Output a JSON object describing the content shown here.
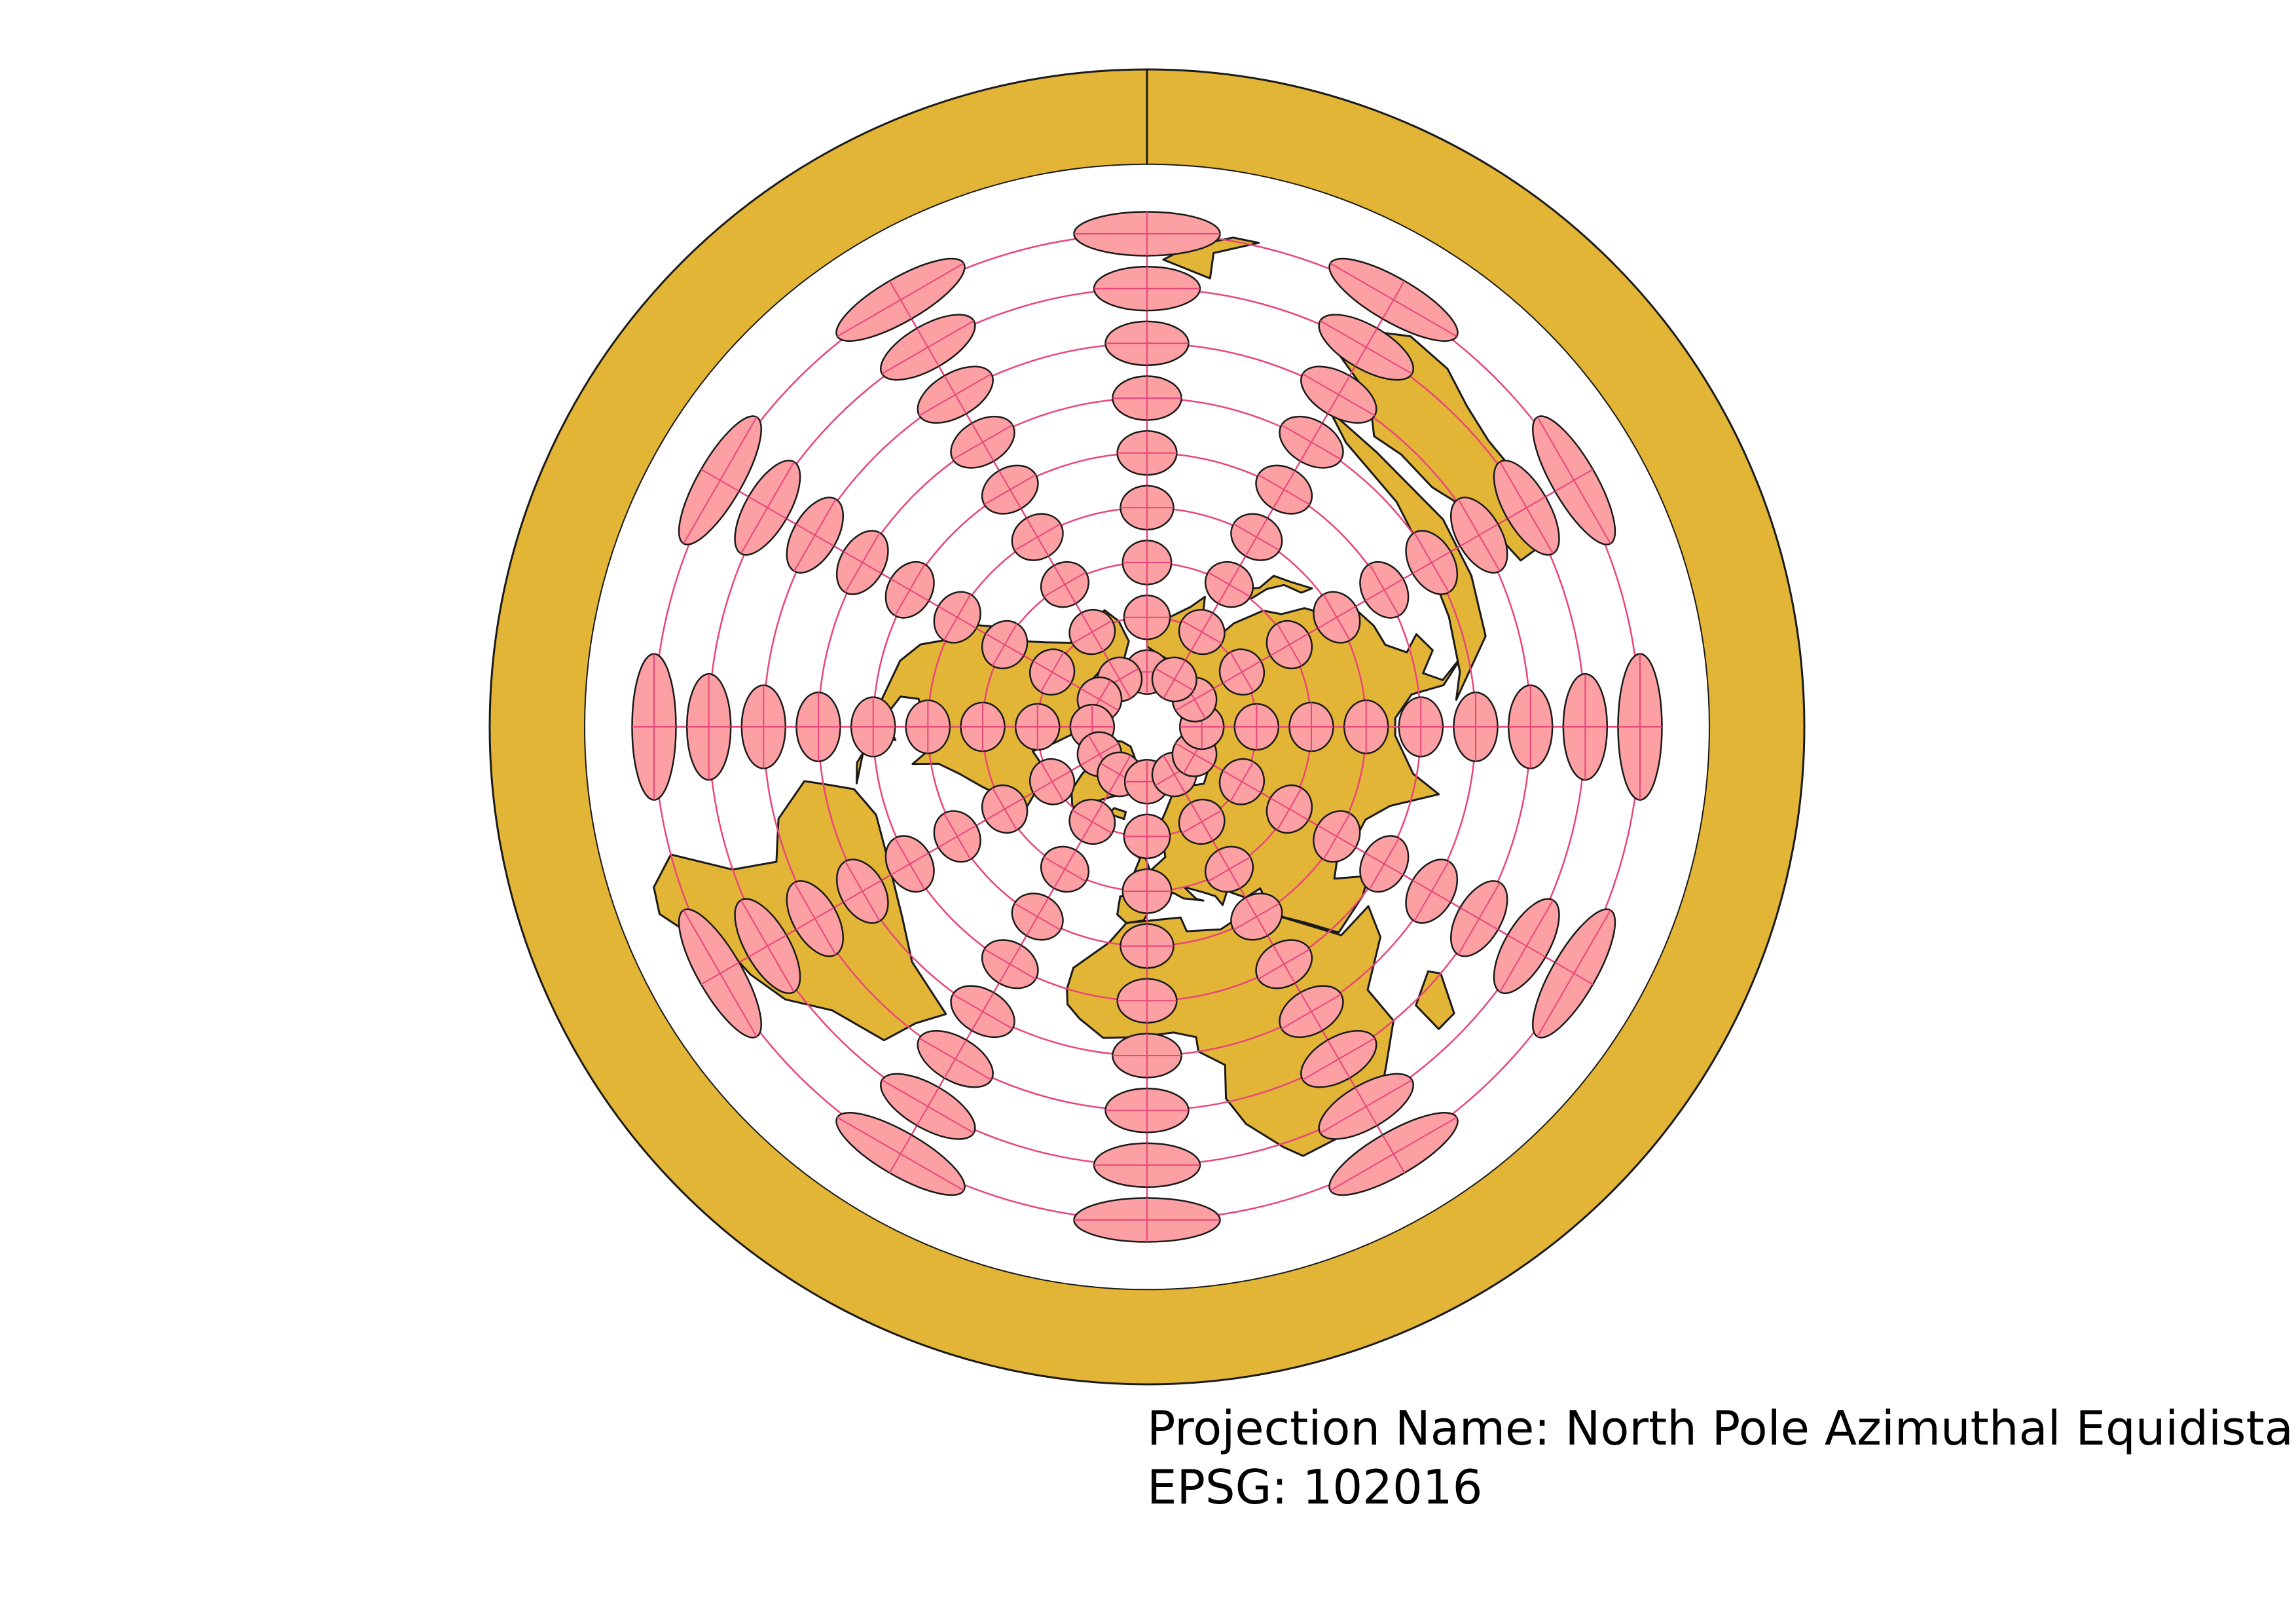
{
  "map": {
    "projection_label": "Projection Name: North Pole Azimuthal Equidistant",
    "epsg_label": "EPSG: 102016",
    "colors": {
      "land": "#e3b536",
      "outline": "#1a1a1a",
      "ocean": "#ffffff",
      "tissot": "#fca0a3",
      "graticule": "#e8467a"
    },
    "graticule": {
      "parallels_deg": [
        75,
        60,
        45,
        30,
        15,
        0,
        -15,
        -30,
        -45
      ],
      "meridian_step_deg": 30
    },
    "tissot_indicatrices": {
      "latitudes_deg": [
        75,
        60,
        45,
        30,
        15,
        0,
        -15,
        -30,
        -45
      ],
      "longitude_step_deg": 30,
      "radius_deg": 6
    }
  }
}
